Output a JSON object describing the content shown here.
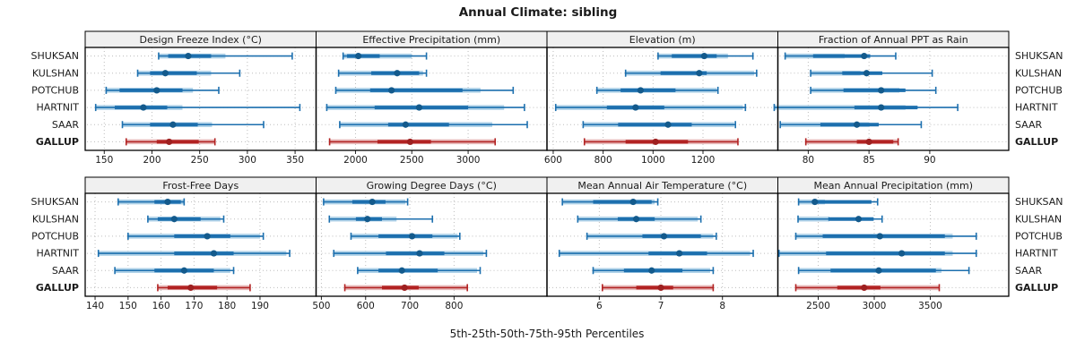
{
  "title": "Annual Climate: sibling",
  "caption": "5th-25th-50th-75th-95th Percentiles",
  "colors": {
    "station_line": "#1c6fae",
    "station_band": "#b0d2e8",
    "station_dot": "#135a8c",
    "highlight_line": "#b22222",
    "highlight_band": "#e7baba",
    "highlight_dot": "#9e2020",
    "grid": "#bdbdbd",
    "panel_border": "#000000",
    "header_fill": "#f0f0f0"
  },
  "chart_data": {
    "type": "interval",
    "note": "Trellis percentile interval plot. Each station row: thin whisker p5-p95 with end caps, light thick band [bandLo,bandHi], dark thick box p25-p75, dot at median p50. Values per station: [p5,p25,p50,p75,p95,bandLo,bandHi].",
    "stations": [
      "SHUKSAN",
      "KULSHAN",
      "POTCHUB",
      "HARTNIT",
      "SAAR",
      "GALLUP"
    ],
    "highlight_station": "GALLUP",
    "legend_position": "none",
    "grid": "dotted",
    "rows": [
      {
        "panels": [
          {
            "title": "Design Freeze Index (°C)",
            "domain": [
              130,
              372
            ],
            "ticks": [
              150,
              200,
              250,
              300,
              350
            ],
            "values": [
              [
                207,
                217,
                238,
                262,
                347,
                207,
                277
              ],
              [
                185,
                198,
                214,
                247,
                292,
                185,
                262
              ],
              [
                152,
                166,
                205,
                232,
                270,
                152,
                243
              ],
              [
                141,
                161,
                191,
                216,
                355,
                141,
                232
              ],
              [
                169,
                198,
                222,
                248,
                317,
                169,
                263
              ],
              [
                173,
                205,
                218,
                249,
                266,
                173,
                266
              ]
            ]
          },
          {
            "title": "Effective Precipitation (mm)",
            "domain": [
              1650,
              3700
            ],
            "ticks": [
              2000,
              2500,
              3000
            ],
            "values": [
              [
                1890,
                1925,
                2025,
                2215,
                2630,
                1890,
                2500
              ],
              [
                1850,
                2140,
                2370,
                2565,
                2630,
                1850,
                2600
              ],
              [
                1825,
                2130,
                2320,
                2950,
                3400,
                1825,
                3110
              ],
              [
                1745,
                2170,
                2565,
                3000,
                3500,
                1745,
                3320
              ],
              [
                1860,
                2290,
                2445,
                2830,
                3525,
                1860,
                3215
              ],
              [
                1770,
                2195,
                2485,
                2670,
                3240,
                1770,
                3240
              ]
            ]
          },
          {
            "title": "Elevation (m)",
            "domain": [
              575,
              1500
            ],
            "ticks": [
              600,
              800,
              1000,
              1200
            ],
            "values": [
              [
                1020,
                1075,
                1205,
                1255,
                1400,
                1020,
                1300
              ],
              [
                890,
                1030,
                1185,
                1215,
                1415,
                890,
                1405
              ],
              [
                775,
                870,
                950,
                1090,
                1260,
                775,
                1255
              ],
              [
                610,
                815,
                930,
                1045,
                1370,
                610,
                1360
              ],
              [
                720,
                860,
                1060,
                1155,
                1330,
                720,
                1325
              ],
              [
                725,
                890,
                1010,
                1140,
                1340,
                725,
                1340
              ]
            ]
          },
          {
            "title": "Fraction of Annual PPT as Rain",
            "domain": [
              77.5,
              96.5
            ],
            "ticks": [
              80,
              85,
              90
            ],
            "values": [
              [
                78.1,
                80.4,
                84.6,
                85.1,
                87.2,
                78.1,
                83.0
              ],
              [
                80.2,
                82.8,
                84.8,
                86.1,
                90.2,
                80.2,
                84.3
              ],
              [
                80.2,
                82.9,
                86.0,
                88.0,
                90.5,
                80.2,
                87.5
              ],
              [
                77.2,
                83.8,
                86.0,
                89.0,
                92.3,
                77.2,
                88.0
              ],
              [
                77.7,
                81.0,
                84.0,
                85.8,
                89.3,
                77.7,
                85.0
              ],
              [
                79.8,
                84.0,
                85.0,
                87.0,
                87.4,
                79.8,
                87.4
              ]
            ]
          }
        ]
      },
      {
        "panels": [
          {
            "title": "Frost-Free Days",
            "domain": [
              137,
              207
            ],
            "ticks": [
              140,
              150,
              160,
              170,
              180,
              190
            ],
            "values": [
              [
                147,
                158,
                162,
                166,
                167,
                147,
                167
              ],
              [
                156,
                159,
                164,
                172,
                179,
                156,
                178
              ],
              [
                150,
                164,
                174,
                181,
                191,
                150,
                190
              ],
              [
                141,
                164,
                176,
                182,
                199,
                141,
                198
              ],
              [
                146,
                158,
                167,
                176,
                182,
                146,
                181
              ],
              [
                159,
                162,
                169,
                177,
                187,
                159,
                187
              ]
            ]
          },
          {
            "title": "Growing Degree Days (°C)",
            "domain": [
              488,
              1010
            ],
            "ticks": [
              500,
              600,
              700,
              800
            ],
            "values": [
              [
                505,
                570,
                615,
                645,
                695,
                505,
                690
              ],
              [
                518,
                578,
                604,
                637,
                751,
                520,
                670
              ],
              [
                567,
                629,
                705,
                751,
                813,
                567,
                808
              ],
              [
                528,
                646,
                722,
                778,
                873,
                528,
                866
              ],
              [
                582,
                629,
                682,
                763,
                859,
                582,
                852
              ],
              [
                553,
                637,
                688,
                720,
                830,
                553,
                830
              ]
            ]
          },
          {
            "title": "Mean Annual Air Temperature (°C)",
            "domain": [
              5.15,
              8.9
            ],
            "ticks": [
              6,
              7,
              8
            ],
            "values": [
              [
                5.4,
                5.9,
                6.55,
                6.85,
                6.95,
                5.4,
                6.9
              ],
              [
                5.65,
                6.3,
                6.6,
                6.9,
                7.65,
                5.65,
                7.6
              ],
              [
                5.8,
                6.7,
                7.05,
                7.65,
                7.9,
                5.8,
                7.85
              ],
              [
                5.35,
                6.8,
                7.3,
                7.75,
                8.5,
                5.35,
                8.45
              ],
              [
                5.9,
                6.4,
                6.85,
                7.35,
                7.85,
                5.9,
                7.8
              ],
              [
                6.05,
                6.6,
                7.0,
                7.2,
                7.85,
                6.05,
                7.85
              ]
            ]
          },
          {
            "title": "Mean Annual Precipitation (mm)",
            "domain": [
              2140,
              4200
            ],
            "ticks": [
              2500,
              3000,
              3500
            ],
            "values": [
              [
                2325,
                2450,
                2470,
                2975,
                3030,
                2325,
                2560
              ],
              [
                2320,
                2590,
                2860,
                2995,
                3070,
                2320,
                2600
              ],
              [
                2300,
                2540,
                3050,
                3630,
                3910,
                2300,
                3700
              ],
              [
                2150,
                2570,
                3245,
                3630,
                3910,
                2150,
                3700
              ],
              [
                2325,
                2610,
                3040,
                3550,
                3845,
                2325,
                3600
              ],
              [
                2300,
                2670,
                2910,
                3055,
                3580,
                2300,
                3580
              ]
            ]
          }
        ]
      }
    ]
  }
}
